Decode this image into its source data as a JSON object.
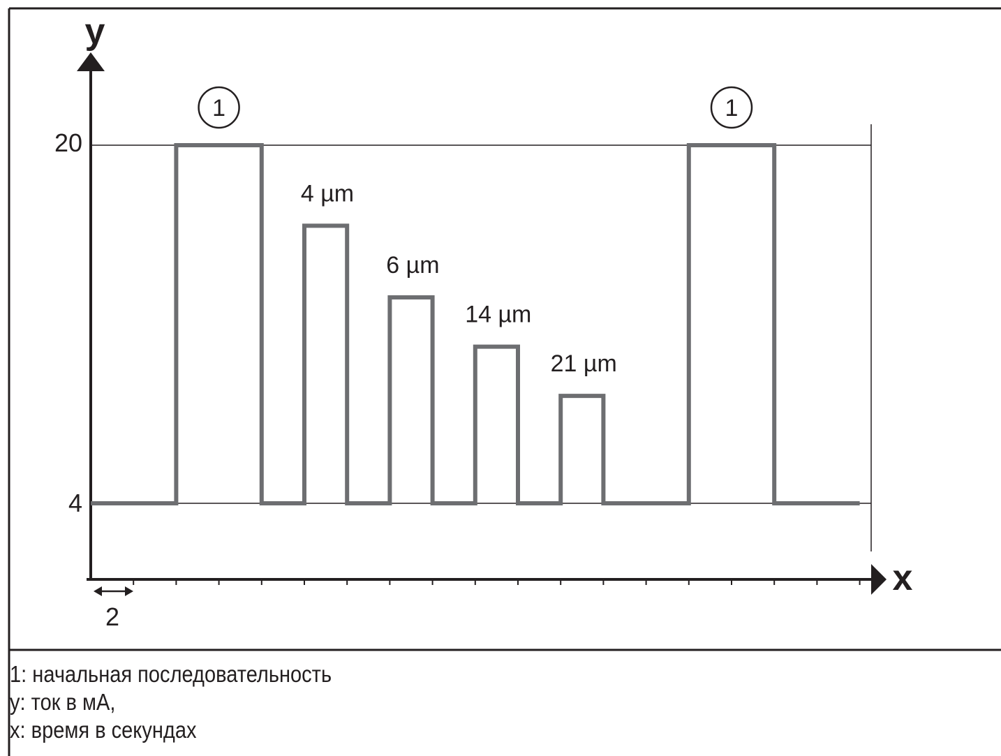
{
  "chart_data": {
    "type": "line",
    "x_axis_letter": "x",
    "y_axis_letter": "y",
    "y_ticks": [
      "20",
      "4"
    ],
    "ylim": [
      4,
      20
    ],
    "time_step_label": "2",
    "grid": false,
    "signal": {
      "baseline": 4,
      "pulses": [
        {
          "start": 4,
          "end": 8,
          "value": 20,
          "label": "",
          "callout": "1"
        },
        {
          "start": 10,
          "end": 12,
          "value": 16.4,
          "label": "4 µm",
          "callout": ""
        },
        {
          "start": 14,
          "end": 16,
          "value": 13.2,
          "label": "6 µm",
          "callout": ""
        },
        {
          "start": 18,
          "end": 20,
          "value": 11.0,
          "label": "14 µm",
          "callout": ""
        },
        {
          "start": 22,
          "end": 24,
          "value": 8.8,
          "label": "21 µm",
          "callout": ""
        },
        {
          "start": 28,
          "end": 32,
          "value": 20,
          "label": "",
          "callout": "1"
        }
      ],
      "x_end": 36
    }
  },
  "legend": [
    "1: начальная последовательность",
    "y: ток в мА,",
    "x: время в секундах"
  ],
  "colors": {
    "signal": "#6d6e71",
    "axes": "#231f20"
  }
}
